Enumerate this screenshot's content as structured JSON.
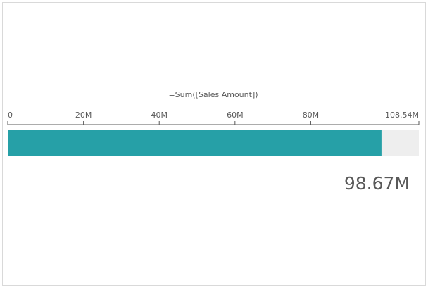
{
  "chart_data": {
    "type": "gauge",
    "title": "=Sum([Sales Amount])",
    "values": [
      98670000
    ],
    "value_labels": [
      "98.67M"
    ],
    "color": "#26a0a7",
    "xlim": [
      0,
      108540000
    ],
    "xticks": [
      0,
      {
        "value": 20000000,
        "label": "20M"
      },
      {
        "value": 40000000,
        "label": "40M"
      },
      {
        "value": 60000000,
        "label": "60M"
      },
      {
        "value": 80000000,
        "label": "80M"
      },
      {
        "value": 108540000,
        "label": "108.54M"
      }
    ]
  }
}
